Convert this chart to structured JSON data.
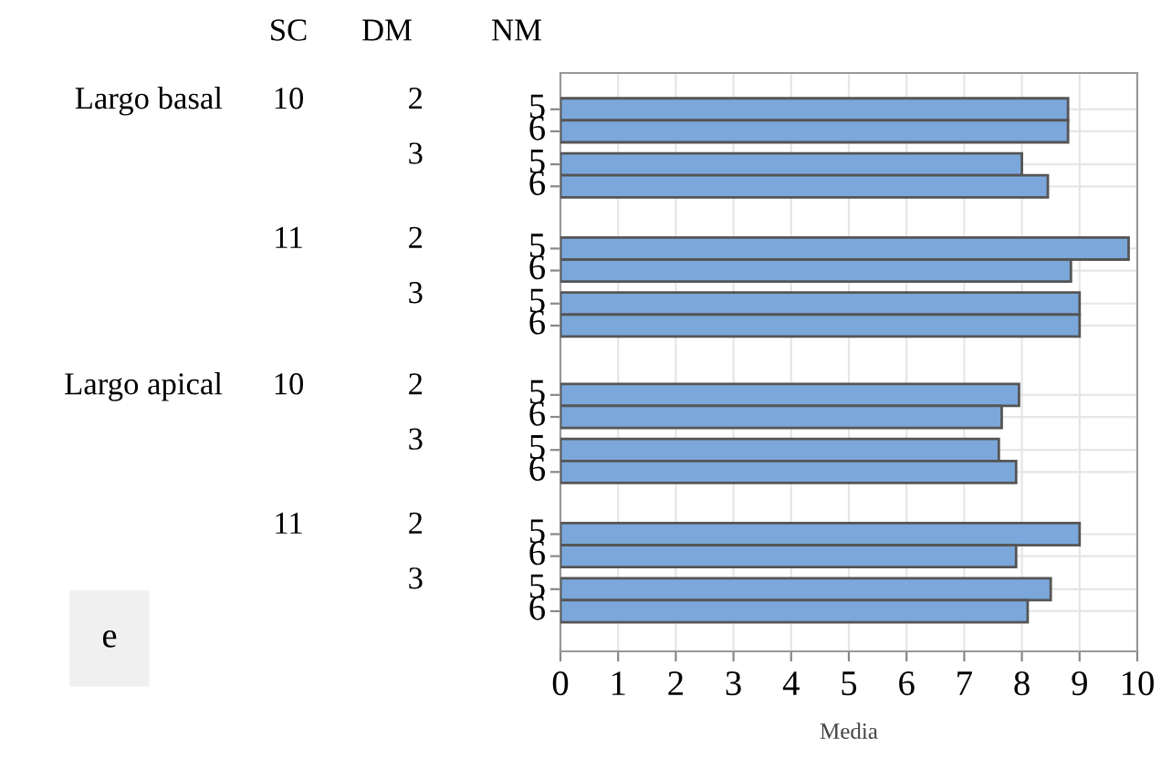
{
  "chart_data": {
    "type": "bar",
    "orientation": "horizontal",
    "xlabel": "Media",
    "categories": [
      null,
      null,
      null,
      null,
      null,
      null,
      null,
      null
    ],
    "series": [
      {
        "name": "5",
        "color": "#7ba7da",
        "values": [
          8.8,
          8.0,
          9.85,
          9.0,
          7.95,
          7.6,
          9.0,
          8.5
        ]
      },
      {
        "name": "6",
        "color": "#7ba7da",
        "values": [
          8.8,
          8.45,
          8.85,
          9.0,
          7.65,
          7.9,
          7.9,
          8.1
        ]
      }
    ],
    "xlim": [
      0,
      10
    ],
    "xticks": [
      0,
      1,
      2,
      3,
      4,
      5,
      6,
      7,
      8,
      9,
      10
    ],
    "grid": true,
    "annotations": [
      "SC",
      "DM",
      "NM",
      "Largo basal",
      "10",
      "2",
      "3",
      "11",
      "2",
      "3",
      "Largo apical",
      "10",
      "2",
      "3",
      "11",
      "2",
      "3",
      "e"
    ]
  }
}
